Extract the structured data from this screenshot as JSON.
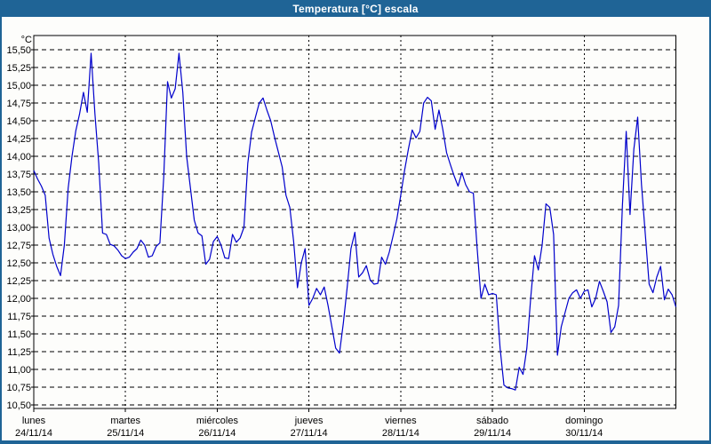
{
  "window": {
    "title": "Temperatura [°C] escala"
  },
  "colors": {
    "titlebar": "#1f6496",
    "window_border": "#1f6496",
    "plot_background": "#fdfdfb",
    "grid": "#000000",
    "axis": "#000000",
    "line": "#0000cc",
    "title_text": "#ffffff",
    "label_text": "#000000"
  },
  "chart_data": {
    "type": "line",
    "title": "Temperatura [°C] escala",
    "ylabel": "°C",
    "ylim": [
      10.5,
      15.5
    ],
    "y_tick_step": 0.25,
    "y_tick_labels": [
      "15,50",
      "15,25",
      "15,00",
      "14,75",
      "14,50",
      "14,25",
      "14,00",
      "13,75",
      "13,50",
      "13,25",
      "13,00",
      "12,75",
      "12,50",
      "12,25",
      "12,00",
      "11,75",
      "11,50",
      "11,25",
      "11,00",
      "10,75",
      "10,50"
    ],
    "x_days": [
      {
        "name": "lunes",
        "date": "24/11/14"
      },
      {
        "name": "martes",
        "date": "25/11/14"
      },
      {
        "name": "miércoles",
        "date": "26/11/14"
      },
      {
        "name": "jueves",
        "date": "27/11/14"
      },
      {
        "name": "viernes",
        "date": "28/11/14"
      },
      {
        "name": "sábado",
        "date": "29/11/14"
      },
      {
        "name": "domingo",
        "date": "30/11/14"
      }
    ],
    "samples_per_day": 24,
    "grid": {
      "horizontal": "dashed every 0.25 °C",
      "vertical": "dotted at day boundaries"
    },
    "legend": "none",
    "series": [
      {
        "name": "Temperatura",
        "color": "#0000cc",
        "values": [
          13.8,
          13.68,
          13.58,
          13.45,
          12.85,
          12.62,
          12.45,
          12.32,
          12.75,
          13.55,
          14.0,
          14.36,
          14.6,
          14.9,
          14.62,
          15.45,
          14.6,
          13.9,
          12.92,
          12.9,
          12.76,
          12.74,
          12.68,
          12.6,
          12.56,
          12.58,
          12.65,
          12.7,
          12.82,
          12.75,
          12.58,
          12.6,
          12.73,
          12.78,
          13.7,
          15.05,
          14.82,
          14.95,
          15.45,
          14.9,
          14.0,
          13.55,
          13.1,
          12.92,
          12.88,
          12.48,
          12.55,
          12.8,
          12.87,
          12.75,
          12.57,
          12.56,
          12.9,
          12.79,
          12.85,
          13.0,
          13.9,
          14.34,
          14.55,
          14.75,
          14.82,
          14.65,
          14.5,
          14.27,
          14.06,
          13.85,
          13.45,
          13.28,
          12.8,
          12.15,
          12.5,
          12.7,
          11.9,
          12.0,
          12.14,
          12.05,
          12.16,
          11.9,
          11.6,
          11.3,
          11.23,
          11.65,
          12.15,
          12.7,
          12.93,
          12.3,
          12.36,
          12.46,
          12.26,
          12.2,
          12.21,
          12.58,
          12.48,
          12.65,
          12.88,
          13.12,
          13.45,
          13.8,
          14.1,
          14.37,
          14.26,
          14.35,
          14.75,
          14.83,
          14.78,
          14.38,
          14.65,
          14.38,
          14.05,
          13.88,
          13.72,
          13.58,
          13.77,
          13.6,
          13.5,
          13.48,
          12.7,
          12.0,
          12.2,
          12.05,
          12.07,
          12.05,
          11.3,
          10.78,
          10.74,
          10.73,
          10.71,
          11.03,
          10.93,
          11.3,
          12.0,
          12.6,
          12.4,
          12.75,
          13.33,
          13.28,
          12.9,
          11.2,
          11.6,
          11.8,
          12.0,
          12.08,
          12.12,
          12.0,
          12.1,
          12.12,
          11.88,
          12.0,
          12.24,
          12.1,
          11.95,
          11.52,
          11.6,
          11.9,
          13.3,
          14.35,
          13.18,
          14.1,
          14.55,
          13.6,
          12.9,
          12.2,
          12.08,
          12.3,
          12.45,
          11.98,
          12.13,
          12.05,
          11.88
        ]
      }
    ]
  }
}
